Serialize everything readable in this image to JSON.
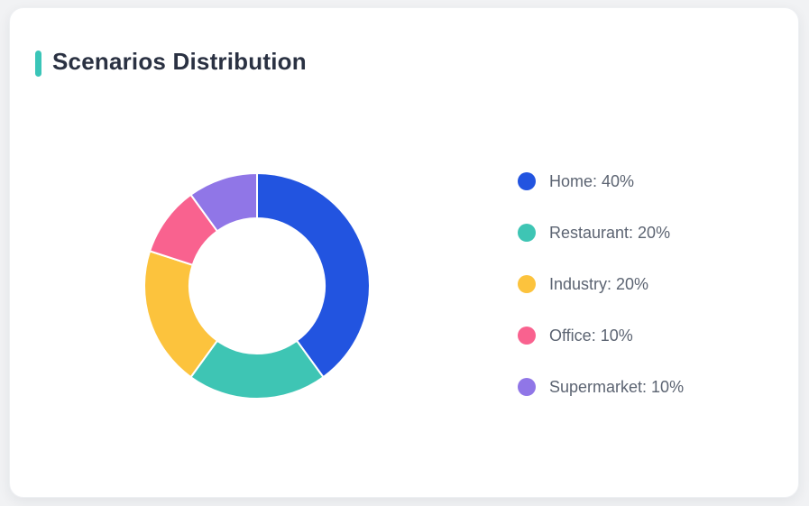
{
  "page": {
    "background": "#f1f2f4"
  },
  "card": {
    "title": "Scenarios Distribution",
    "accent_color": "#3ac5b8",
    "background": "#ffffff"
  },
  "chart_data": {
    "type": "pie",
    "title": "Scenarios Distribution",
    "donut": true,
    "start_angle_deg": 0,
    "direction": "clockwise",
    "inner_radius_ratio": 0.6,
    "legend_position": "right",
    "unit": "%",
    "categories": [
      "Home",
      "Restaurant",
      "Industry",
      "Office",
      "Supermarket"
    ],
    "values": [
      40,
      20,
      20,
      10,
      10
    ],
    "colors": [
      "#2254e0",
      "#3ec5b4",
      "#fcc33d",
      "#f9628f",
      "#9076e7"
    ],
    "legend_labels": [
      "Home: 40%",
      "Restaurant: 20%",
      "Industry: 20%",
      "Office: 10%",
      "Supermarket: 10%"
    ]
  }
}
